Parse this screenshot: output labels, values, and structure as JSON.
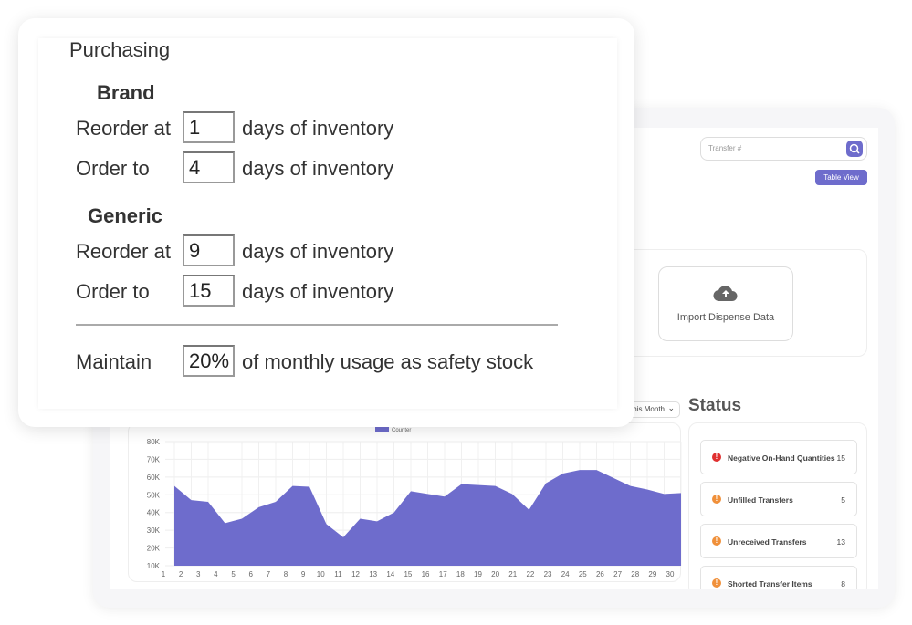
{
  "dashboard": {
    "search_placeholder": "Transfer #",
    "table_view": "Table View",
    "import_label": "Import Dispense Data",
    "period": "This Month",
    "status_title": "Status",
    "status_items": [
      {
        "label": "Negative On-Hand Quantities",
        "count": "15",
        "level": "error",
        "color": "#e03030"
      },
      {
        "label": "Unfilled Transfers",
        "count": "5",
        "level": "warning",
        "color": "#f0903a"
      },
      {
        "label": "Unreceived Transfers",
        "count": "13",
        "level": "warning",
        "color": "#f0903a"
      },
      {
        "label": "Shorted Transfer Items",
        "count": "8",
        "level": "warning",
        "color": "#f0903a"
      }
    ]
  },
  "chart_data": {
    "type": "area",
    "legend": [
      "Counter"
    ],
    "legend_placement": "top",
    "color": "#6e6ccc",
    "x_ticks": [
      "1",
      "2",
      "3",
      "4",
      "5",
      "6",
      "7",
      "8",
      "9",
      "10",
      "11",
      "12",
      "13",
      "14",
      "15",
      "16",
      "17",
      "18",
      "19",
      "20",
      "21",
      "22",
      "23",
      "24",
      "25",
      "26",
      "27",
      "28",
      "29",
      "30"
    ],
    "y_ticks": [
      "10K",
      "20K",
      "30K",
      "40K",
      "50K",
      "60K",
      "70K",
      "80K"
    ],
    "ylim": [
      10000,
      80000
    ],
    "grid": true,
    "series": [
      {
        "name": "Counter",
        "values": [
          55000,
          47000,
          46000,
          34000,
          36500,
          43000,
          46000,
          55000,
          54500,
          33500,
          26000,
          36500,
          35000,
          40000,
          52000,
          50500,
          49000,
          56000,
          55500,
          55000,
          50500,
          41500,
          56500,
          62000,
          64000,
          64000,
          59500,
          55000,
          53000,
          50500,
          51000
        ]
      }
    ]
  },
  "purchasing": {
    "title": "Purchasing",
    "brand": {
      "heading": "Brand",
      "reorder_label": "Reorder at",
      "reorder_value": "1",
      "order_label": "Order to",
      "order_value": "4",
      "suffix": "days of inventory"
    },
    "generic": {
      "heading": "Generic",
      "reorder_label": "Reorder at",
      "reorder_value": "9",
      "order_label": "Order to",
      "order_value": "15",
      "suffix": "days of inventory"
    },
    "maintain_label": "Maintain",
    "maintain_value": "20%",
    "maintain_suffix": "of monthly usage as safety stock"
  }
}
